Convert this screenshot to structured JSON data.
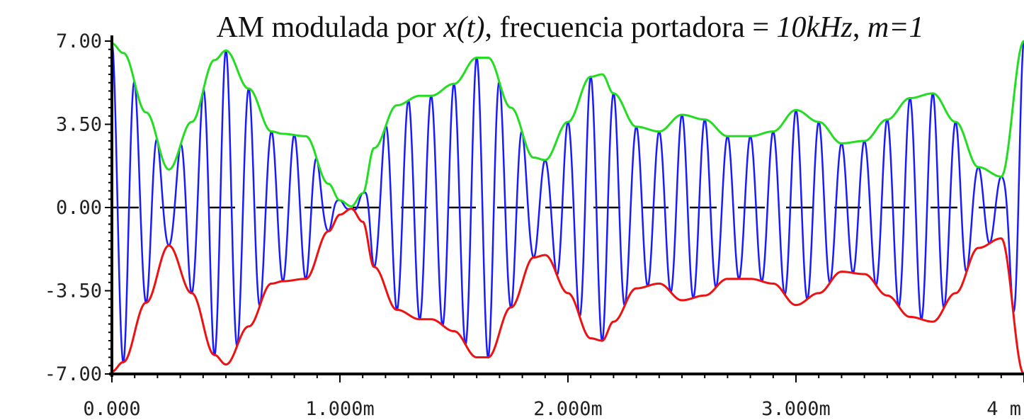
{
  "chart_data": {
    "type": "line",
    "title": {
      "prefix": "AM modulada por ",
      "signal": "x(t)",
      "middle": ", frecuencia portadora = ",
      "carrier": "10kHz",
      "separator": ",  ",
      "index": "m=1"
    },
    "xlabel": "",
    "ylabel": "",
    "xlim": [
      0,
      0.004
    ],
    "ylim": [
      -7,
      7
    ],
    "x_ticks": [
      {
        "value": 0,
        "label": "0.000"
      },
      {
        "value": 0.001,
        "label": "1.000m"
      },
      {
        "value": 0.002,
        "label": "2.000m"
      },
      {
        "value": 0.003,
        "label": "3.000m"
      },
      {
        "value": 0.004,
        "label": "4 m"
      }
    ],
    "y_ticks": [
      {
        "value": 7,
        "label": "7.00"
      },
      {
        "value": 3.5,
        "label": "3.50"
      },
      {
        "value": 0,
        "label": "0.00"
      },
      {
        "value": -3.5,
        "label": "-3.50"
      },
      {
        "value": -7,
        "label": "-7.00"
      }
    ],
    "grid": false,
    "carrier_frequency_hz": 10000,
    "colors": {
      "modulated": "#1a1aff",
      "upper_envelope": "#22dd22",
      "lower_envelope": "#ee1111",
      "axis": "#000000",
      "zero_line": "#000000"
    },
    "envelope": {
      "x": [
        0,
        5e-05,
        0.00015,
        0.00025,
        0.00035,
        0.00045,
        0.0005,
        0.0006,
        0.0007,
        0.00075,
        0.00085,
        0.00095,
        0.001,
        0.00105,
        0.0011,
        0.00115,
        0.00125,
        0.00135,
        0.0014,
        0.0015,
        0.0016,
        0.00165,
        0.00175,
        0.00185,
        0.0019,
        0.002,
        0.0021,
        0.00215,
        0.0022,
        0.0023,
        0.0024,
        0.0025,
        0.0026,
        0.0027,
        0.0028,
        0.0029,
        0.003,
        0.0031,
        0.0032,
        0.0033,
        0.0034,
        0.0035,
        0.0036,
        0.0037,
        0.0038,
        0.0039,
        0.004
      ],
      "values": [
        6.9,
        6.5,
        4.0,
        1.6,
        3.6,
        6.2,
        6.6,
        5.0,
        3.2,
        3.1,
        3.0,
        1.0,
        0.3,
        0.05,
        0.6,
        2.5,
        4.3,
        4.7,
        4.7,
        5.2,
        6.3,
        6.3,
        4.2,
        2.1,
        2.0,
        3.6,
        5.5,
        5.6,
        4.8,
        3.4,
        3.2,
        3.9,
        3.7,
        3.0,
        3.0,
        3.2,
        4.1,
        3.6,
        2.7,
        2.8,
        3.7,
        4.6,
        4.8,
        3.6,
        1.7,
        1.3,
        7.0
      ]
    }
  }
}
